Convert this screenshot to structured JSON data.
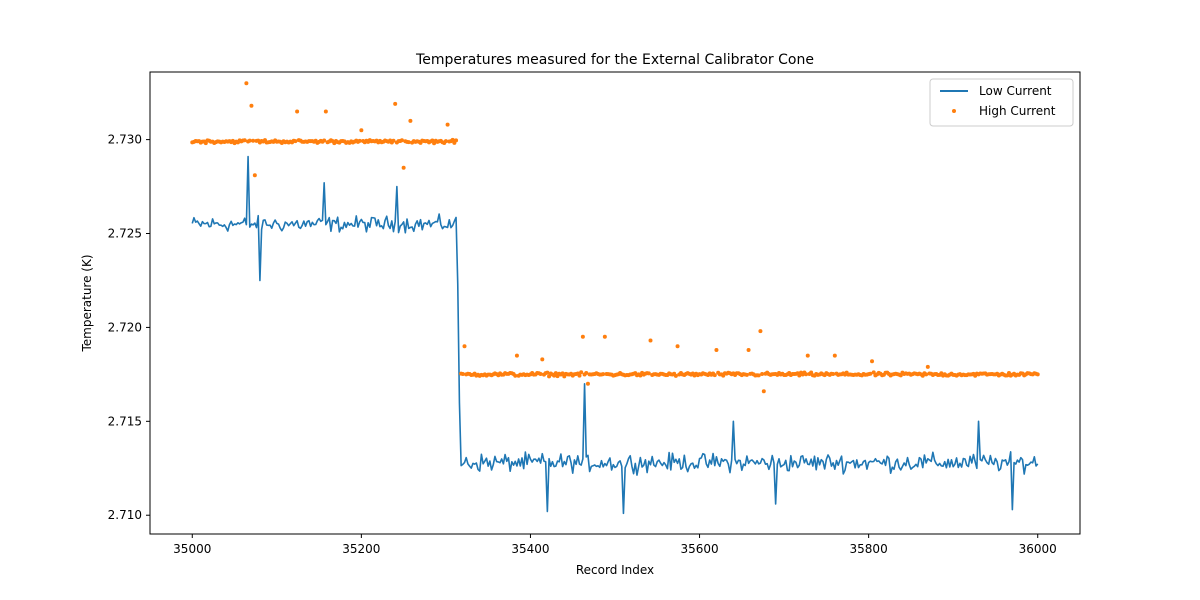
{
  "chart_data": {
    "type": "line",
    "title": "Temperatures measured for the External Calibrator Cone",
    "xlabel": "Record Index",
    "ylabel": "Temperature (K)",
    "xlim": [
      34950,
      36050
    ],
    "ylim": [
      2.709,
      2.7336
    ],
    "x_ticks": [
      35000,
      35200,
      35400,
      35600,
      35800,
      36000
    ],
    "x_tick_labels": [
      "35000",
      "35200",
      "35400",
      "35600",
      "35800",
      "36000"
    ],
    "y_ticks": [
      2.71,
      2.715,
      2.72,
      2.725,
      2.73
    ],
    "y_tick_labels": [
      "2.710",
      "2.715",
      "2.720",
      "2.725",
      "2.730"
    ],
    "grid": false,
    "legend_position": "top-right",
    "series": [
      {
        "name": "Low Current",
        "kind": "line",
        "color": "#1f77b4",
        "x_start": 35000,
        "x_end": 36000,
        "x_step": 2,
        "step_at": 35315,
        "segments": [
          {
            "from": 35000,
            "to": 35313,
            "mean": 2.7255,
            "noise": 0.0006
          },
          {
            "from": 35317,
            "to": 36000,
            "mean": 2.7128,
            "noise": 0.0007
          }
        ],
        "spikes": [
          {
            "x": 35067,
            "y": 2.7291
          },
          {
            "x": 35080,
            "y": 2.7225
          },
          {
            "x": 35156,
            "y": 2.7277
          },
          {
            "x": 35243,
            "y": 2.7275
          },
          {
            "x": 35465,
            "y": 2.717
          },
          {
            "x": 35420,
            "y": 2.7102
          },
          {
            "x": 35510,
            "y": 2.7101
          },
          {
            "x": 35640,
            "y": 2.715
          },
          {
            "x": 35690,
            "y": 2.7106
          },
          {
            "x": 35930,
            "y": 2.715
          },
          {
            "x": 35970,
            "y": 2.7103
          }
        ]
      },
      {
        "name": "High Current",
        "kind": "scatter",
        "color": "#ff7f0e",
        "x_start": 35000,
        "x_end": 36000,
        "x_step": 2,
        "gap": [
          35314,
          35318
        ],
        "segments": [
          {
            "from": 35000,
            "to": 35313,
            "mean": 2.7299,
            "noise": 0.00012
          },
          {
            "from": 35318,
            "to": 36000,
            "mean": 2.7175,
            "noise": 0.00013
          }
        ],
        "spikes": [
          {
            "x": 35064,
            "y": 2.733
          },
          {
            "x": 35070,
            "y": 2.7318
          },
          {
            "x": 35074,
            "y": 2.7281
          },
          {
            "x": 35124,
            "y": 2.7315
          },
          {
            "x": 35158,
            "y": 2.7315
          },
          {
            "x": 35200,
            "y": 2.7305
          },
          {
            "x": 35241,
            "y": 2.7319
          },
          {
            "x": 35250,
            "y": 2.7285
          },
          {
            "x": 35258,
            "y": 2.731
          },
          {
            "x": 35302,
            "y": 2.7308
          },
          {
            "x": 35322,
            "y": 2.719
          },
          {
            "x": 35385,
            "y": 2.7185
          },
          {
            "x": 35415,
            "y": 2.7183
          },
          {
            "x": 35462,
            "y": 2.7195
          },
          {
            "x": 35468,
            "y": 2.717
          },
          {
            "x": 35488,
            "y": 2.7195
          },
          {
            "x": 35543,
            "y": 2.7193
          },
          {
            "x": 35575,
            "y": 2.719
          },
          {
            "x": 35620,
            "y": 2.7188
          },
          {
            "x": 35658,
            "y": 2.7188
          },
          {
            "x": 35672,
            "y": 2.7198
          },
          {
            "x": 35676,
            "y": 2.7166
          },
          {
            "x": 35728,
            "y": 2.7185
          },
          {
            "x": 35760,
            "y": 2.7185
          },
          {
            "x": 35805,
            "y": 2.7182
          },
          {
            "x": 35870,
            "y": 2.7179
          }
        ]
      }
    ]
  }
}
